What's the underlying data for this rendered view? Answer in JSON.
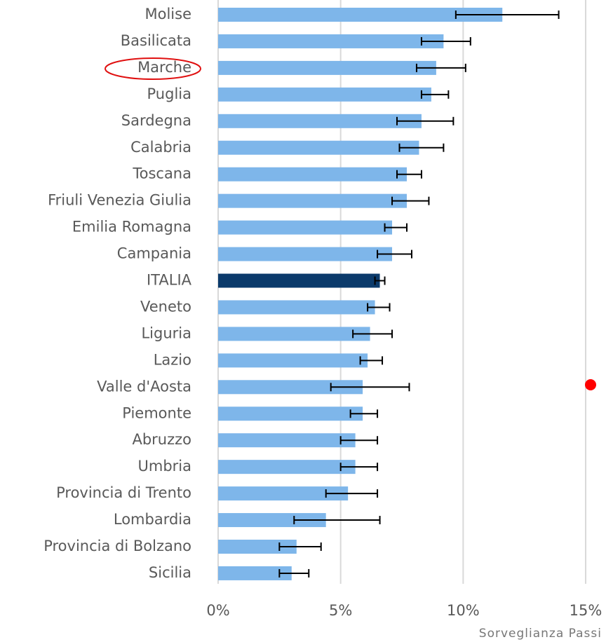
{
  "chart_data": {
    "type": "bar",
    "orientation": "horizontal",
    "categories": [
      "Molise",
      "Basilicata",
      "Marche",
      "Puglia",
      "Sardegna",
      "Calabria",
      "Toscana",
      "Friuli Venezia Giulia",
      "Emilia Romagna",
      "Campania",
      "ITALIA",
      "Veneto",
      "Liguria",
      "Lazio",
      "Valle d'Aosta",
      "Piemonte",
      "Abruzzo",
      "Umbria",
      "Provincia di Trento",
      "Lombardia",
      "Provincia di Bolzano",
      "Sicilia"
    ],
    "values": [
      11.6,
      9.2,
      8.9,
      8.7,
      8.3,
      8.2,
      7.7,
      7.7,
      7.1,
      7.1,
      6.6,
      6.4,
      6.2,
      6.1,
      5.9,
      5.9,
      5.6,
      5.6,
      5.3,
      4.4,
      3.2,
      3.0
    ],
    "ci_low": [
      9.7,
      8.3,
      8.1,
      8.3,
      7.3,
      7.4,
      7.3,
      7.1,
      6.8,
      6.5,
      6.4,
      6.1,
      5.5,
      5.8,
      4.6,
      5.4,
      5.0,
      5.0,
      4.4,
      3.1,
      2.5,
      2.5
    ],
    "ci_high": [
      13.9,
      10.3,
      10.1,
      9.4,
      9.6,
      9.2,
      8.3,
      8.6,
      7.7,
      7.9,
      6.8,
      7.0,
      7.1,
      6.7,
      7.8,
      6.5,
      6.5,
      6.5,
      6.5,
      6.6,
      4.2,
      3.7
    ],
    "colors": [
      "#7eb6ea",
      "#7eb6ea",
      "#7eb6ea",
      "#7eb6ea",
      "#7eb6ea",
      "#7eb6ea",
      "#7eb6ea",
      "#7eb6ea",
      "#7eb6ea",
      "#7eb6ea",
      "#0b3a6b",
      "#7eb6ea",
      "#7eb6ea",
      "#7eb6ea",
      "#7eb6ea",
      "#7eb6ea",
      "#7eb6ea",
      "#7eb6ea",
      "#7eb6ea",
      "#7eb6ea",
      "#7eb6ea",
      "#7eb6ea"
    ],
    "xlim": [
      0,
      15
    ],
    "xticks": [
      {
        "value": 0,
        "label": "0%"
      },
      {
        "value": 5,
        "label": "5%"
      },
      {
        "value": 10,
        "label": "10%"
      },
      {
        "value": 15,
        "label": "15%"
      }
    ],
    "grid": true,
    "source": "Sorveglianza Passi"
  }
}
